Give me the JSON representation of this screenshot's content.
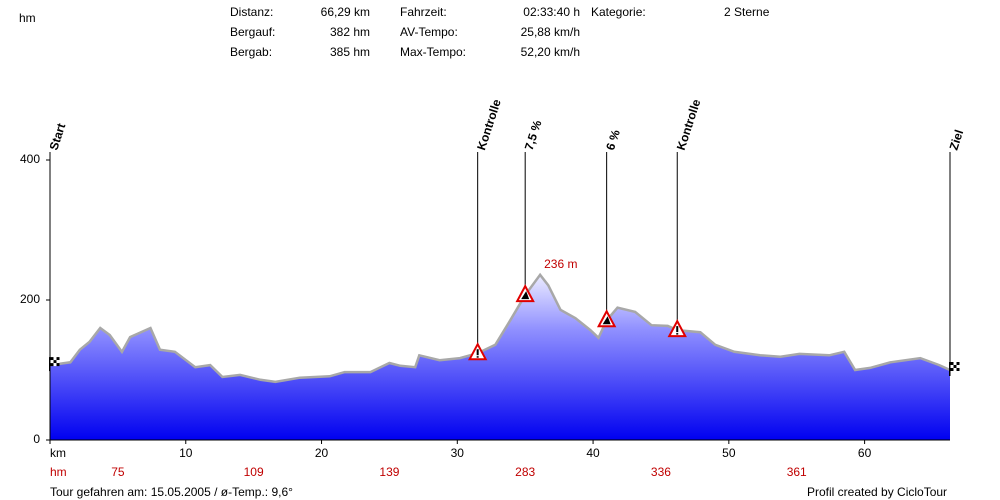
{
  "header": {
    "stats": [
      [
        [
          "Distanz:",
          "66,29 km"
        ],
        [
          "Bergauf:",
          "382 hm"
        ],
        [
          "Bergab:",
          "385 hm"
        ]
      ],
      [
        [
          "Fahrzeit:",
          "02:33:40 h"
        ],
        [
          "AV-Tempo:",
          "25,88 km/h"
        ],
        [
          "Max-Tempo:",
          "52,20 km/h"
        ]
      ],
      [
        [
          "Kategorie:",
          "2 Sterne"
        ]
      ]
    ]
  },
  "chart_data": {
    "type": "area",
    "ylabel": "hm",
    "x": [
      0,
      1.5,
      2.2,
      2.9,
      3.7,
      4.4,
      5.3,
      5.9,
      7.4,
      8.1,
      9.2,
      10.7,
      11.8,
      12.7,
      14.0,
      15.5,
      16.6,
      18.4,
      20.6,
      21.7,
      23.6,
      25.0,
      25.8,
      26.9,
      27.2,
      28.7,
      30.2,
      31.5,
      32.8,
      33.9,
      35.0,
      36.1,
      36.7,
      37.6,
      38.7,
      39.8,
      40.4,
      41.0,
      41.8,
      43.1,
      44.3,
      45.5,
      46.2,
      47.9,
      49.0,
      50.4,
      52.3,
      53.8,
      55.2,
      57.4,
      58.5,
      59.3,
      60.4,
      61.9,
      64.1,
      65.5,
      66.29
    ],
    "values": [
      107,
      111,
      129,
      140,
      160,
      150,
      126,
      147,
      160,
      129,
      126,
      104,
      107,
      90,
      93,
      86,
      83,
      89,
      91,
      97,
      97,
      110,
      106,
      104,
      121,
      114,
      117,
      124,
      136,
      171,
      207,
      236,
      221,
      186,
      174,
      157,
      146,
      171,
      189,
      183,
      164,
      163,
      157,
      154,
      136,
      126,
      121,
      119,
      123,
      121,
      126,
      100,
      103,
      111,
      117,
      107,
      100
    ],
    "color": "#0000f0",
    "xlim": [
      0,
      66.29
    ],
    "ylim": [
      0,
      400
    ],
    "xticks": [
      {
        "value": 0,
        "label": "km"
      },
      10,
      20,
      30,
      40,
      50,
      60
    ],
    "yticks": [
      0,
      200,
      400
    ],
    "peak": {
      "x": 36.1,
      "value": 236,
      "label": "236 m"
    },
    "markers": [
      {
        "label": "Start",
        "x": 0,
        "value": 107,
        "icon": "flag"
      },
      {
        "label": "Kontrolle",
        "x": 31.5,
        "value": 124,
        "icon": "warning"
      },
      {
        "label": "7,5 %",
        "x": 35.0,
        "value": 207,
        "icon": "climb"
      },
      {
        "label": "6 %",
        "x": 41.0,
        "value": 171,
        "icon": "climb"
      },
      {
        "label": "Kontrolle",
        "x": 46.2,
        "value": 157,
        "icon": "warning"
      },
      {
        "label": "Ziel",
        "x": 66.29,
        "value": 100,
        "icon": "flag"
      }
    ],
    "climb_row": {
      "label": "hm",
      "x": [
        5,
        15,
        25,
        35,
        45,
        55
      ],
      "values": [
        75,
        109,
        139,
        283,
        336,
        361
      ]
    }
  },
  "footer": {
    "left": "Tour gefahren am: 15.05.2005  /  ø-Temp.: 9,6°",
    "right": "Profil created by CicloTour"
  }
}
